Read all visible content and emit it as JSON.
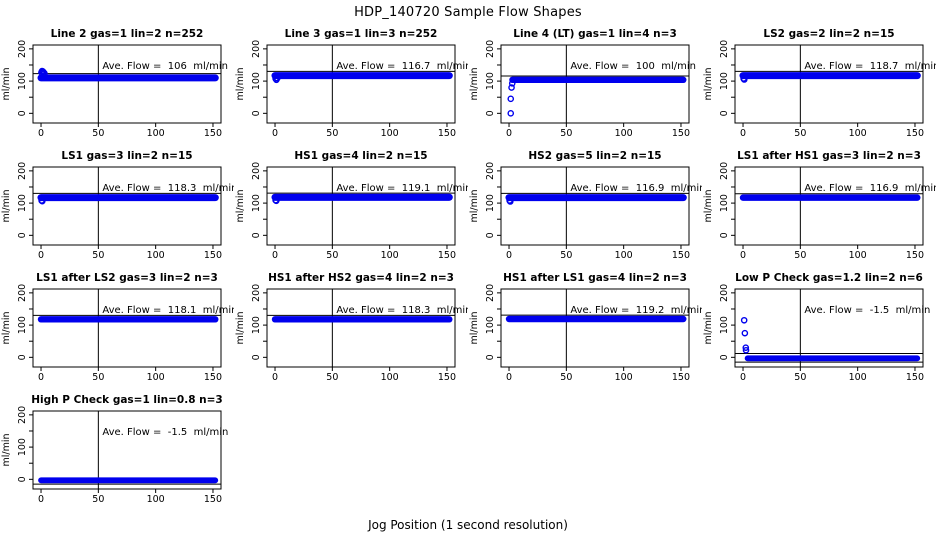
{
  "page": {
    "title": "HDP_140720  Sample Flow Shapes",
    "xlabel": "Jog Position (1 second resolution)"
  },
  "chart_data": {
    "type": "scatter",
    "title": "HDP_140720  Sample Flow Shapes",
    "xlabel": "Jog Position (1 second resolution)",
    "ylabel": "ml/min",
    "xlim": [
      -7,
      157
    ],
    "ylim": [
      -30,
      212
    ],
    "xticks": [
      0,
      50,
      100,
      150
    ],
    "yticks_major": [
      0,
      100,
      200
    ],
    "yticks_minor": [
      50,
      150
    ],
    "vline_x": 50,
    "point_color": "#0000EE",
    "line_color": "#000000",
    "grid": false,
    "legend": "none",
    "layout": "4x4 grid, 13 panels",
    "subplots": [
      {
        "title": "Line 2 gas=1 lin=2 n=252",
        "annotation": "Ave. Flow =  106  ml/min",
        "ave_flow": 106,
        "n": 252,
        "band": {
          "x_start": 0,
          "x_end": 152,
          "y_center": 110,
          "y_half": 11
        },
        "hlines": [
          123
        ],
        "startup_points": [
          [
            0.3,
            127
          ],
          [
            0.9,
            131
          ],
          [
            1.6,
            130
          ],
          [
            2.3,
            127
          ],
          [
            3.0,
            124
          ]
        ]
      },
      {
        "title": "Line 3 gas=1 lin=3 n=252",
        "annotation": "Ave. Flow =  116.7  ml/min",
        "ave_flow": 116.7,
        "n": 252,
        "band": {
          "x_start": 0,
          "x_end": 152,
          "y_center": 117,
          "y_half": 11
        },
        "hlines": [
          130
        ],
        "startup_points": [
          [
            0.5,
            108
          ],
          [
            1.2,
            104
          ],
          [
            2.0,
            109
          ]
        ]
      },
      {
        "title": "Line 4 (LT) gas=1 lin=4 n=3",
        "annotation": "Ave. Flow =  100  ml/min",
        "ave_flow": 100,
        "n": 3,
        "band": {
          "x_start": 3,
          "x_end": 152,
          "y_center": 104,
          "y_half": 10
        },
        "hlines": [
          116
        ],
        "startup_points": [
          [
            1.5,
            0
          ],
          [
            1.5,
            45
          ],
          [
            2.2,
            80
          ],
          [
            2.8,
            93
          ]
        ]
      },
      {
        "title": "LS2 gas=2 lin=2 n=15",
        "annotation": "Ave. Flow =  118.7  ml/min",
        "ave_flow": 118.7,
        "n": 15,
        "band": {
          "x_start": 0,
          "x_end": 152,
          "y_center": 117,
          "y_half": 11
        },
        "hlines": [
          130
        ],
        "startup_points": [
          [
            0.5,
            108
          ],
          [
            1.1,
            105
          ]
        ]
      },
      {
        "title": "LS1 gas=3 lin=2 n=15",
        "annotation": "Ave. Flow =  118.3  ml/min",
        "ave_flow": 118.3,
        "n": 15,
        "band": {
          "x_start": 0,
          "x_end": 152,
          "y_center": 117,
          "y_half": 11
        },
        "hlines": [
          130
        ],
        "startup_points": [
          [
            0.5,
            108
          ],
          [
            1.1,
            106
          ]
        ]
      },
      {
        "title": "HS1 gas=4 lin=2 n=15",
        "annotation": "Ave. Flow =  119.1  ml/min",
        "ave_flow": 119.1,
        "n": 15,
        "band": {
          "x_start": 0,
          "x_end": 152,
          "y_center": 118,
          "y_half": 11
        },
        "hlines": [
          131
        ],
        "startup_points": [
          [
            0.5,
            109
          ],
          [
            1.1,
            107
          ]
        ]
      },
      {
        "title": "HS2 gas=5 lin=2 n=15",
        "annotation": "Ave. Flow =  116.9  ml/min",
        "ave_flow": 116.9,
        "n": 15,
        "band": {
          "x_start": 0,
          "x_end": 152,
          "y_center": 117,
          "y_half": 11
        },
        "hlines": [
          130
        ],
        "startup_points": [
          [
            0.5,
            108
          ],
          [
            1.1,
            105
          ]
        ]
      },
      {
        "title": "LS1 after HS1 gas=3 lin=2 n=3",
        "annotation": "Ave. Flow =  116.9  ml/min",
        "ave_flow": 116.9,
        "n": 3,
        "band": {
          "x_start": 0,
          "x_end": 152,
          "y_center": 117,
          "y_half": 10
        },
        "hlines": [
          129
        ],
        "startup_points": []
      },
      {
        "title": "LS1 after LS2 gas=3 lin=2 n=3",
        "annotation": "Ave. Flow =  118.1  ml/min",
        "ave_flow": 118.1,
        "n": 3,
        "band": {
          "x_start": 0,
          "x_end": 152,
          "y_center": 118,
          "y_half": 10
        },
        "hlines": [
          130
        ],
        "startup_points": []
      },
      {
        "title": "HS1 after HS2 gas=4 lin=2 n=3",
        "annotation": "Ave. Flow =  118.3  ml/min",
        "ave_flow": 118.3,
        "n": 3,
        "band": {
          "x_start": 0,
          "x_end": 152,
          "y_center": 118,
          "y_half": 10
        },
        "hlines": [
          130
        ],
        "startup_points": []
      },
      {
        "title": "HS1 after LS1 gas=4 lin=2 n=3",
        "annotation": "Ave. Flow =  119.2  ml/min",
        "ave_flow": 119.2,
        "n": 3,
        "band": {
          "x_start": 0,
          "x_end": 152,
          "y_center": 119,
          "y_half": 10
        },
        "hlines": [
          131
        ],
        "startup_points": []
      },
      {
        "title": "Low P Check gas=1.2 lin=2 n=6",
        "annotation": "Ave. Flow =  -1.5  ml/min",
        "ave_flow": -1.5,
        "n": 6,
        "band": {
          "x_start": 4,
          "x_end": 152,
          "y_center": -3,
          "y_half": 9
        },
        "hlines": [
          12,
          -15
        ],
        "startup_points": [
          [
            1.0,
            115
          ],
          [
            1.6,
            75
          ],
          [
            2.4,
            30
          ],
          [
            2.6,
            22
          ]
        ]
      },
      {
        "title": "High P Check gas=1 lin=0.8 n=3",
        "annotation": "Ave. Flow =  -1.5  ml/min",
        "ave_flow": -1.5,
        "n": 3,
        "band": {
          "x_start": 0,
          "x_end": 152,
          "y_center": -3,
          "y_half": 9
        },
        "hlines": [
          -15
        ],
        "startup_points": []
      }
    ]
  }
}
